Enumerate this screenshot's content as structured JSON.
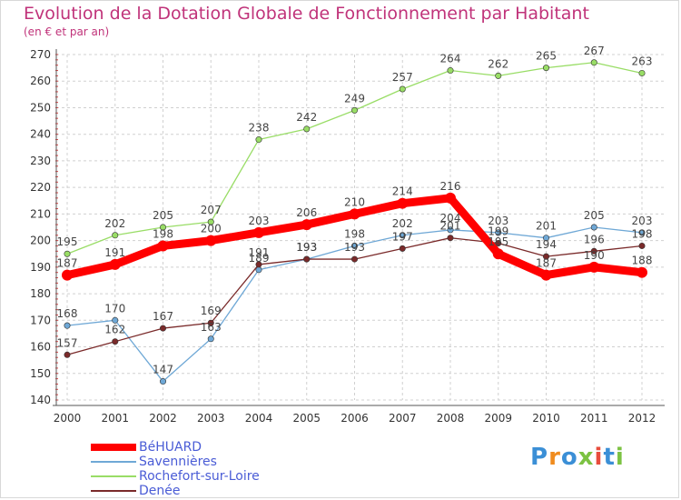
{
  "chart_data": {
    "type": "line",
    "title": "Evolution de la Dotation Globale de Fonctionnement par Habitant",
    "subtitle": "(en € et par an)",
    "x": [
      "2000",
      "2001",
      "2002",
      "2003",
      "2004",
      "2005",
      "2006",
      "2007",
      "2008",
      "2009",
      "2010",
      "2011",
      "2012"
    ],
    "ylim": [
      140,
      270
    ],
    "yticks": [
      140,
      150,
      160,
      170,
      180,
      190,
      200,
      210,
      220,
      230,
      240,
      250,
      260,
      270
    ],
    "grid": true,
    "legend_position": "bottom-left",
    "series": [
      {
        "name": "BéHUARD",
        "color": "#ff0000",
        "values": [
          187,
          191,
          198,
          200,
          203,
          206,
          210,
          214,
          216,
          195,
          187,
          190,
          188
        ]
      },
      {
        "name": "Savennières",
        "color": "#6fa8d6",
        "values": [
          168,
          170,
          147,
          163,
          189,
          193,
          198,
          202,
          204,
          203,
          201,
          205,
          203
        ]
      },
      {
        "name": "Rochefort-sur-Loire",
        "color": "#99dd66",
        "values": [
          195,
          202,
          205,
          207,
          238,
          242,
          249,
          257,
          264,
          262,
          265,
          267,
          263
        ]
      },
      {
        "name": "Denée",
        "color": "#7a2a2a",
        "values": [
          157,
          162,
          167,
          169,
          191,
          193,
          193,
          197,
          201,
          199,
          194,
          196,
          198
        ]
      }
    ],
    "data_labels": {
      "BéHUARD": [
        "187",
        "191",
        "198",
        "200",
        "203",
        "206",
        "210",
        "214",
        "216",
        "195",
        "187",
        "190",
        "188"
      ],
      "Savennières": [
        "168",
        "170",
        "147",
        "163",
        "189",
        "193",
        "198",
        "202",
        "204",
        "203",
        "201",
        "205",
        "203"
      ],
      "Rochefort-sur-Loire": [
        "195",
        "202",
        "205",
        "207",
        "238",
        "242",
        "249",
        "257",
        "264",
        "262",
        "265",
        "267",
        "263"
      ],
      "Denée": [
        "157",
        "162",
        "167",
        "169",
        "191",
        "193",
        "193",
        "197",
        "201",
        "199",
        "194",
        "196",
        "198"
      ]
    }
  },
  "logo": {
    "text": "Proxiti",
    "letters": [
      "P",
      "r",
      "o",
      "x",
      "i",
      "t",
      "i"
    ],
    "colors": [
      "#3b8fd6",
      "#f08c1e",
      "#3b8fd6",
      "#7cc242",
      "#e84c3d",
      "#3b8fd6",
      "#7cc242"
    ]
  }
}
